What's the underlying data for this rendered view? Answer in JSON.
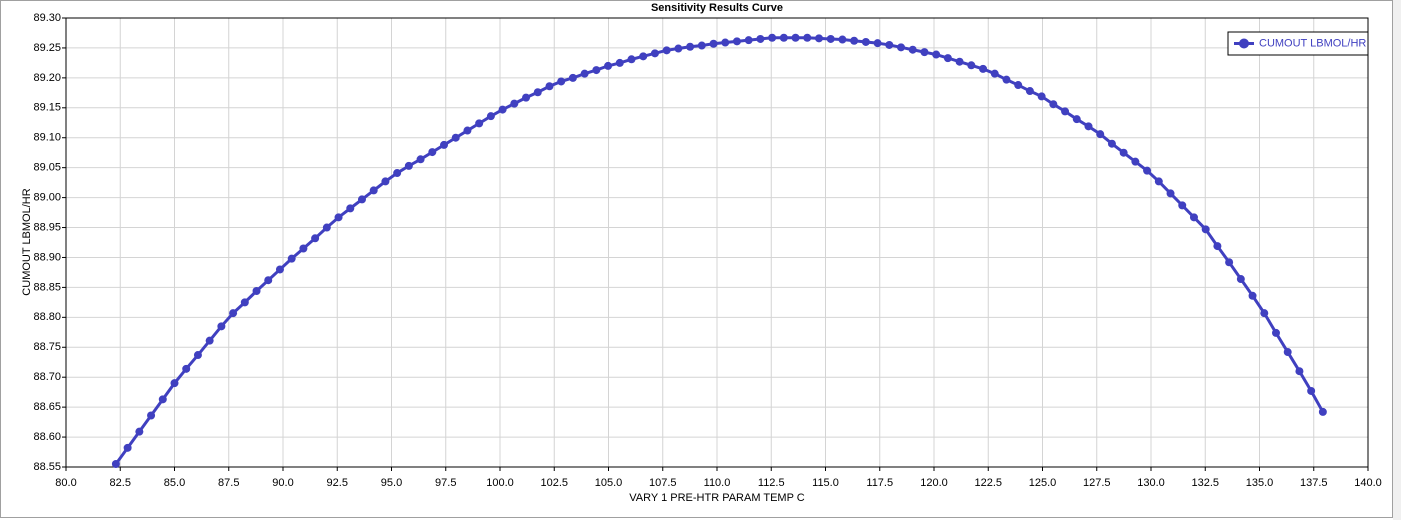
{
  "chart_data": {
    "type": "line",
    "title": "Sensitivity Results Curve",
    "xlabel": "VARY   1 PRE-HTR PARAM TEMP C",
    "ylabel": "CUMOUT LBMOL/HR",
    "legend_position": "upper right",
    "grid": true,
    "xlim": [
      80,
      140
    ],
    "xticks": [
      {
        "value": 80,
        "label": "80.0"
      },
      82.5,
      {
        "value": 85,
        "label": "85.0"
      },
      87.5,
      {
        "value": 90,
        "label": "90.0"
      },
      92.5,
      {
        "value": 95,
        "label": "95.0"
      },
      97.5,
      {
        "value": 100,
        "label": "100.0"
      },
      102.5,
      {
        "value": 105,
        "label": "105.0"
      },
      107.5,
      {
        "value": 110,
        "label": "110.0"
      },
      112.5,
      {
        "value": 115,
        "label": "115.0"
      },
      117.5,
      {
        "value": 120,
        "label": "120.0"
      },
      122.5,
      {
        "value": 125,
        "label": "125.0"
      },
      127.5,
      {
        "value": 130,
        "label": "130.0"
      },
      132.5,
      {
        "value": 135,
        "label": "135.0"
      },
      137.5,
      {
        "value": 140,
        "label": "140.0"
      }
    ],
    "ylim": [
      88.55,
      89.3
    ],
    "yticks": [
      88.55,
      {
        "value": 88.6,
        "label": "88.60"
      },
      88.65,
      {
        "value": 88.7,
        "label": "88.70"
      },
      88.75,
      {
        "value": 88.8,
        "label": "88.80"
      },
      88.85,
      {
        "value": 88.9,
        "label": "88.90"
      },
      88.95,
      {
        "value": 89.0,
        "label": "89.00"
      },
      89.05,
      {
        "value": 89.1,
        "label": "89.10"
      },
      89.15,
      {
        "value": 89.2,
        "label": "89.20"
      },
      89.25,
      {
        "value": 89.3,
        "label": "89.30"
      }
    ],
    "x": [
      82.3,
      82.84,
      83.38,
      83.92,
      84.46,
      85.0,
      85.54,
      86.08,
      86.62,
      87.16,
      87.7,
      88.24,
      88.78,
      89.32,
      89.86,
      90.4,
      90.94,
      91.48,
      92.02,
      92.56,
      93.1,
      93.64,
      94.18,
      94.72,
      95.26,
      95.8,
      96.34,
      96.88,
      97.42,
      97.96,
      98.5,
      99.04,
      99.58,
      100.12,
      100.66,
      101.2,
      101.74,
      102.28,
      102.82,
      103.36,
      103.9,
      104.44,
      104.98,
      105.52,
      106.06,
      106.6,
      107.14,
      107.68,
      108.22,
      108.76,
      109.3,
      109.84,
      110.38,
      110.92,
      111.46,
      112.0,
      112.54,
      113.08,
      113.62,
      114.16,
      114.7,
      115.24,
      115.78,
      116.32,
      116.86,
      117.4,
      117.94,
      118.48,
      119.02,
      119.56,
      120.1,
      120.64,
      121.18,
      121.72,
      122.26,
      122.8,
      123.34,
      123.88,
      124.42,
      124.96,
      125.5,
      126.04,
      126.58,
      127.12,
      127.66,
      128.2,
      128.74,
      129.28,
      129.82,
      130.36,
      130.9,
      131.44,
      131.98,
      132.52,
      133.06,
      133.6,
      134.14,
      134.68,
      135.22,
      135.76,
      136.3,
      136.84,
      137.38,
      137.92
    ],
    "series": [
      {
        "name": "CUMOUT LBMOL/HR",
        "color": "#4040c0",
        "values": [
          88.555,
          88.582,
          88.609,
          88.636,
          88.663,
          88.69,
          88.714,
          88.737,
          88.761,
          88.785,
          88.807,
          88.825,
          88.844,
          88.862,
          88.88,
          88.898,
          88.915,
          88.932,
          88.95,
          88.967,
          88.982,
          88.997,
          89.012,
          89.027,
          89.041,
          89.053,
          89.064,
          89.076,
          89.088,
          89.1,
          89.112,
          89.124,
          89.136,
          89.147,
          89.157,
          89.167,
          89.176,
          89.186,
          89.194,
          89.2,
          89.207,
          89.213,
          89.22,
          89.225,
          89.231,
          89.236,
          89.241,
          89.246,
          89.249,
          89.252,
          89.254,
          89.257,
          89.259,
          89.261,
          89.263,
          89.265,
          89.267,
          89.267,
          89.267,
          89.267,
          89.266,
          89.265,
          89.264,
          89.262,
          89.26,
          89.258,
          89.255,
          89.251,
          89.247,
          89.243,
          89.239,
          89.233,
          89.227,
          89.221,
          89.215,
          89.207,
          89.197,
          89.188,
          89.178,
          89.169,
          89.156,
          89.144,
          89.131,
          89.119,
          89.106,
          89.09,
          89.075,
          89.06,
          89.045,
          89.027,
          89.007,
          88.987,
          88.967,
          88.947,
          88.919,
          88.892,
          88.864,
          88.836,
          88.807,
          88.774,
          88.742,
          88.71,
          88.677,
          88.642
        ]
      }
    ]
  }
}
